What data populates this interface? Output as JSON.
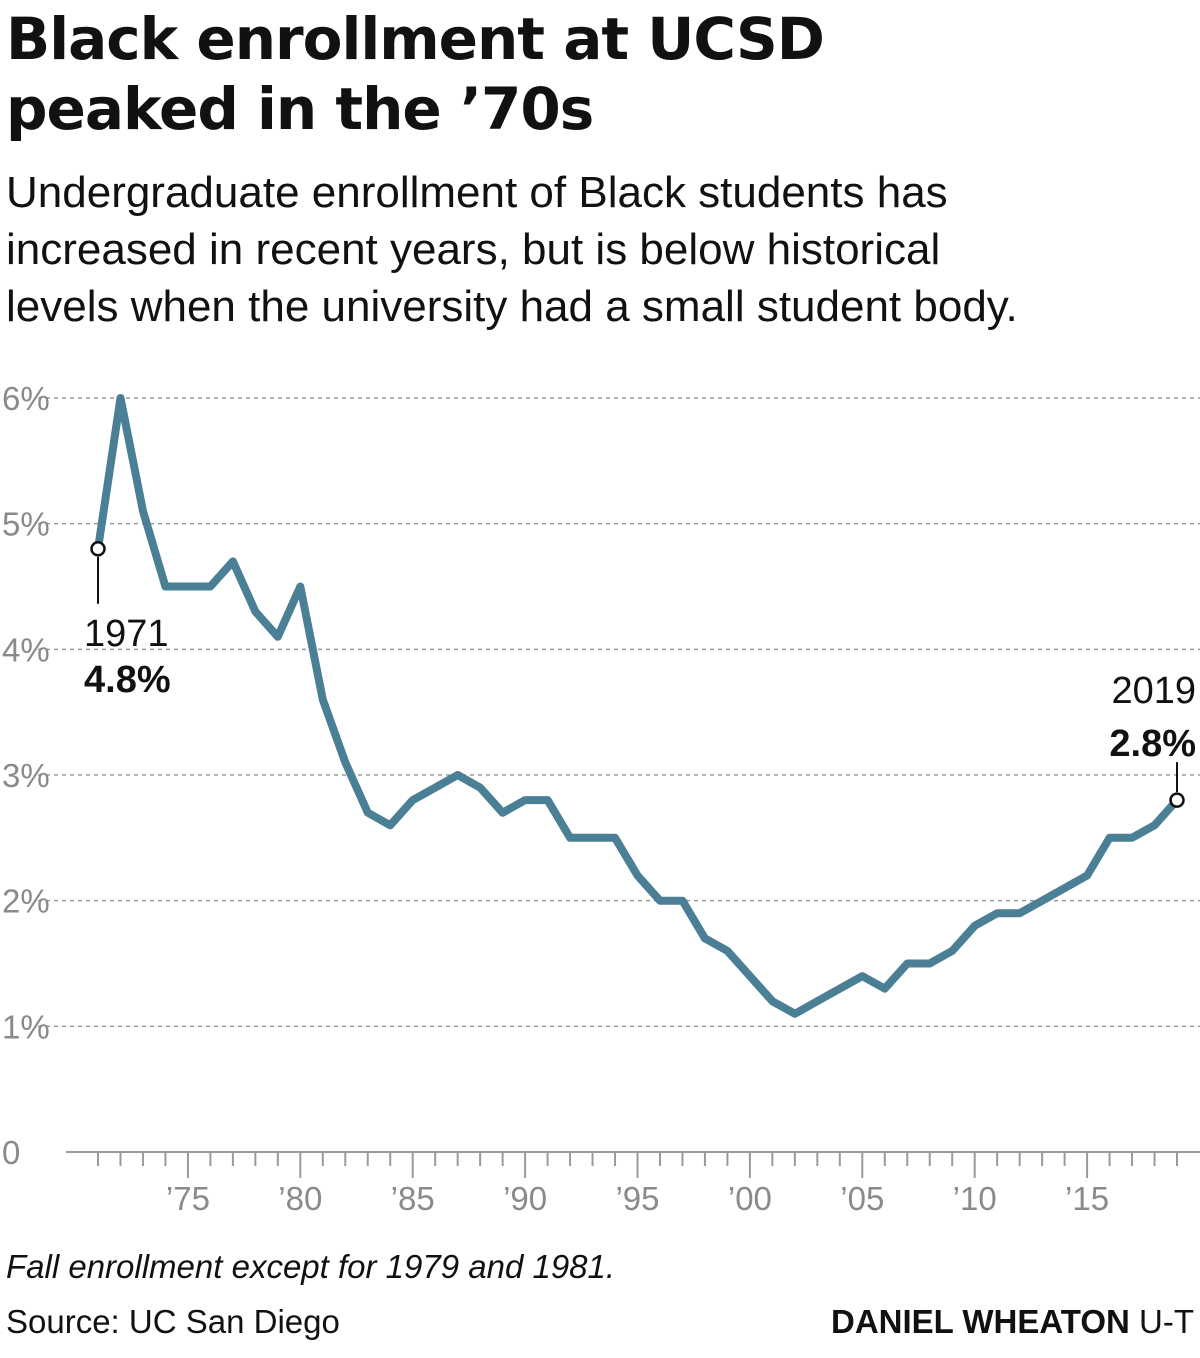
{
  "header": {
    "title_line1": "Black enrollment at UCSD",
    "title_line2": "peaked in the ’70s",
    "subtitle_line1": "Undergraduate enrollment of Black students has",
    "subtitle_line2": "increased in recent years, but is below historical",
    "subtitle_line3": "levels when the university had a small student body."
  },
  "chart_data": {
    "type": "line",
    "title": "Black enrollment at UCSD peaked in the ’70s",
    "xlabel": "",
    "ylabel": "",
    "x": [
      1971,
      1972,
      1973,
      1974,
      1975,
      1976,
      1977,
      1978,
      1979,
      1980,
      1981,
      1982,
      1983,
      1984,
      1985,
      1986,
      1987,
      1988,
      1989,
      1990,
      1991,
      1992,
      1993,
      1994,
      1995,
      1996,
      1997,
      1998,
      1999,
      2000,
      2001,
      2002,
      2003,
      2004,
      2005,
      2006,
      2007,
      2008,
      2009,
      2010,
      2011,
      2012,
      2013,
      2014,
      2015,
      2016,
      2017,
      2018,
      2019
    ],
    "series": [
      {
        "values": [
          4.8,
          6.0,
          5.1,
          4.5,
          4.5,
          4.5,
          4.7,
          4.3,
          4.1,
          4.5,
          3.6,
          3.1,
          2.7,
          2.6,
          2.8,
          2.9,
          3.0,
          2.9,
          2.7,
          2.8,
          2.8,
          2.5,
          2.5,
          2.5,
          2.2,
          2.0,
          2.0,
          1.7,
          1.6,
          1.4,
          1.2,
          1.1,
          1.2,
          1.3,
          1.4,
          1.3,
          1.5,
          1.5,
          1.6,
          1.8,
          1.9,
          1.9,
          2.0,
          2.1,
          2.2,
          2.5,
          2.5,
          2.6,
          2.8
        ],
        "color": "#4a7f96"
      }
    ],
    "xlim": [
      1971,
      2019
    ],
    "ylim": [
      0,
      6
    ],
    "yticks": [
      {
        "value": 0,
        "label": "0"
      },
      {
        "value": 1,
        "label": "1%"
      },
      {
        "value": 2,
        "label": "2%"
      },
      {
        "value": 3,
        "label": "3%"
      },
      {
        "value": 4,
        "label": "4%"
      },
      {
        "value": 5,
        "label": "5%"
      },
      {
        "value": 6,
        "label": "6%"
      }
    ],
    "xticks": [
      {
        "value": 1975,
        "label": "’75"
      },
      {
        "value": 1980,
        "label": "’80"
      },
      {
        "value": 1985,
        "label": "’85"
      },
      {
        "value": 1990,
        "label": "’90"
      },
      {
        "value": 1995,
        "label": "’95"
      },
      {
        "value": 2000,
        "label": "’00"
      },
      {
        "value": 2005,
        "label": "’05"
      },
      {
        "value": 2010,
        "label": "’10"
      },
      {
        "value": 2015,
        "label": "’15"
      }
    ],
    "grid": true,
    "annotations": [
      {
        "x": 1971,
        "y": 4.8,
        "year_label": "1971",
        "value_label": "4.8%"
      },
      {
        "x": 2019,
        "y": 2.8,
        "year_label": "2019",
        "value_label": "2.8%"
      }
    ]
  },
  "footer": {
    "note": "Fall enrollment except for 1979 and 1981.",
    "source": "Source: UC San Diego",
    "credit_name": "DANIEL WHEATON",
    "credit_org": " U-T"
  }
}
